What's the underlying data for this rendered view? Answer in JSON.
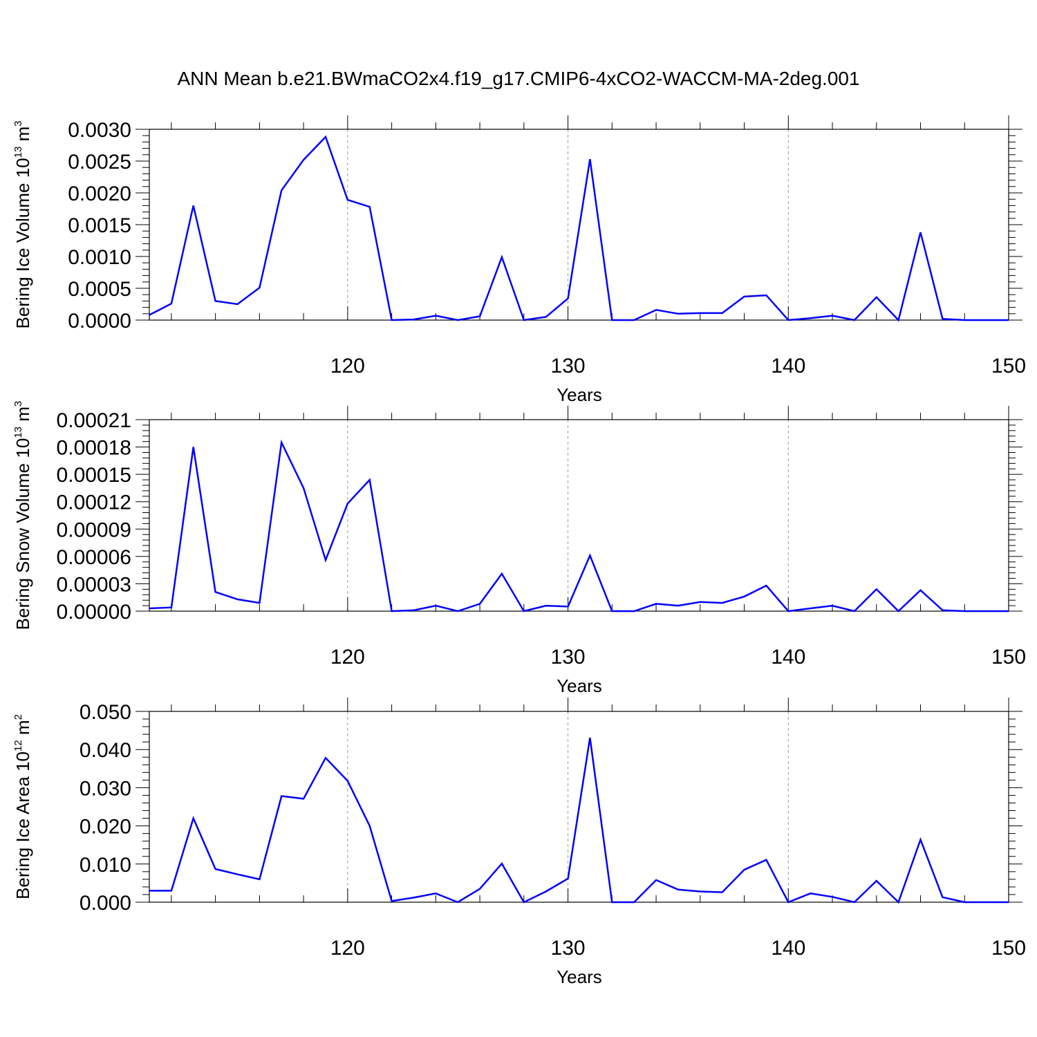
{
  "figure": {
    "title": "ANN Mean b.e21.BWmaCO2x4.f19_g17.CMIP6-4xCO2-WACCM-MA-2deg.001"
  },
  "chart_data": [
    {
      "type": "line",
      "ylabel_prefix": "Bering Ice Volume 10",
      "ylabel_exp": "13",
      "ylabel_unit": " m",
      "ylabel_unit_exp": "3",
      "xlabel": "Years",
      "xlim": [
        111,
        150
      ],
      "ylim": [
        0,
        0.003
      ],
      "x_ticks": [
        120,
        130,
        140,
        150
      ],
      "y_ticks": [
        0.0,
        0.0005,
        0.001,
        0.0015,
        0.002,
        0.0025,
        0.003
      ],
      "y_tick_labels": [
        "0.0000",
        "0.0005",
        "0.0010",
        "0.0015",
        "0.0020",
        "0.0025",
        "0.0030"
      ],
      "grid": "dashed vertical at x ticks",
      "series": [
        {
          "color": "#0000ff",
          "x": [
            111,
            112,
            113,
            114,
            115,
            116,
            117,
            118,
            119,
            120,
            121,
            122,
            123,
            124,
            125,
            126,
            127,
            128,
            129,
            130,
            131,
            132,
            133,
            134,
            135,
            136,
            137,
            138,
            139,
            140,
            141,
            142,
            143,
            144,
            145,
            146,
            147,
            148,
            149,
            150
          ],
          "values": [
            8e-05,
            0.00026,
            0.0018,
            0.0003,
            0.00025,
            0.00051,
            0.00204,
            0.00252,
            0.00288,
            0.00189,
            0.00178,
            0.0,
            1e-05,
            7e-05,
            0.0,
            6e-05,
            0.00099,
            0.0,
            5e-05,
            0.00034,
            0.00253,
            0.0,
            0.0,
            0.00016,
            0.0001,
            0.00011,
            0.00011,
            0.00037,
            0.00039,
            0.0,
            3e-05,
            7e-05,
            0.0,
            0.00036,
            0.0,
            0.00138,
            2e-05,
            0.0,
            0.0,
            0.0
          ]
        }
      ]
    },
    {
      "type": "line",
      "ylabel_prefix": "Bering Snow Volume 10",
      "ylabel_exp": "13",
      "ylabel_unit": " m",
      "ylabel_unit_exp": "3",
      "xlabel": "Years",
      "xlim": [
        111,
        150
      ],
      "ylim": [
        0,
        0.00021
      ],
      "x_ticks": [
        120,
        130,
        140,
        150
      ],
      "y_ticks": [
        0.0,
        3e-05,
        6e-05,
        9e-05,
        0.00012,
        0.00015,
        0.00018,
        0.00021
      ],
      "y_tick_labels": [
        "0.00000",
        "0.00003",
        "0.00006",
        "0.00009",
        "0.00012",
        "0.00015",
        "0.00018",
        "0.00021"
      ],
      "grid": "dashed vertical at x ticks",
      "series": [
        {
          "color": "#0000ff",
          "x": [
            111,
            112,
            113,
            114,
            115,
            116,
            117,
            118,
            119,
            120,
            121,
            122,
            123,
            124,
            125,
            126,
            127,
            128,
            129,
            130,
            131,
            132,
            133,
            134,
            135,
            136,
            137,
            138,
            139,
            140,
            141,
            142,
            143,
            144,
            145,
            146,
            147,
            148,
            149,
            150
          ],
          "values": [
            3e-06,
            4e-06,
            0.00018,
            2.1e-05,
            1.3e-05,
            9e-06,
            0.000185,
            0.000135,
            5.6e-05,
            0.000118,
            0.000144,
            0.0,
            1e-06,
            6e-06,
            0.0,
            8e-06,
            4.1e-05,
            0.0,
            6e-06,
            5e-06,
            6.1e-05,
            0.0,
            0.0,
            8e-06,
            6e-06,
            1e-05,
            9e-06,
            1.6e-05,
            2.8e-05,
            0.0,
            3e-06,
            6e-06,
            0.0,
            2.4e-05,
            0.0,
            2.3e-05,
            1e-06,
            0.0,
            0.0,
            0.0
          ]
        }
      ]
    },
    {
      "type": "line",
      "ylabel_prefix": "Bering Ice Area 10",
      "ylabel_exp": "12",
      "ylabel_unit": " m",
      "ylabel_unit_exp": "2",
      "xlabel": "Years",
      "xlim": [
        111,
        150
      ],
      "ylim": [
        0,
        0.05
      ],
      "x_ticks": [
        120,
        130,
        140,
        150
      ],
      "y_ticks": [
        0.0,
        0.01,
        0.02,
        0.03,
        0.04,
        0.05
      ],
      "y_tick_labels": [
        "0.000",
        "0.010",
        "0.020",
        "0.030",
        "0.040",
        "0.050"
      ],
      "grid": "dashed vertical at x ticks",
      "series": [
        {
          "color": "#0000ff",
          "x": [
            111,
            112,
            113,
            114,
            115,
            116,
            117,
            118,
            119,
            120,
            121,
            122,
            123,
            124,
            125,
            126,
            127,
            128,
            129,
            130,
            131,
            132,
            133,
            134,
            135,
            136,
            137,
            138,
            139,
            140,
            141,
            142,
            143,
            144,
            145,
            146,
            147,
            148,
            149,
            150
          ],
          "values": [
            0.003,
            0.003,
            0.022,
            0.0087,
            0.0073,
            0.006,
            0.0278,
            0.0271,
            0.0378,
            0.0318,
            0.02,
            0.0003,
            0.0012,
            0.0023,
            0.0,
            0.0035,
            0.0101,
            0.0,
            0.0028,
            0.0062,
            0.0431,
            0.0,
            0.0,
            0.0058,
            0.0033,
            0.0028,
            0.0026,
            0.0085,
            0.0111,
            0.0,
            0.0023,
            0.0014,
            0.0,
            0.0056,
            0.0,
            0.0164,
            0.0013,
            0.0,
            0.0,
            0.0
          ]
        }
      ]
    }
  ]
}
